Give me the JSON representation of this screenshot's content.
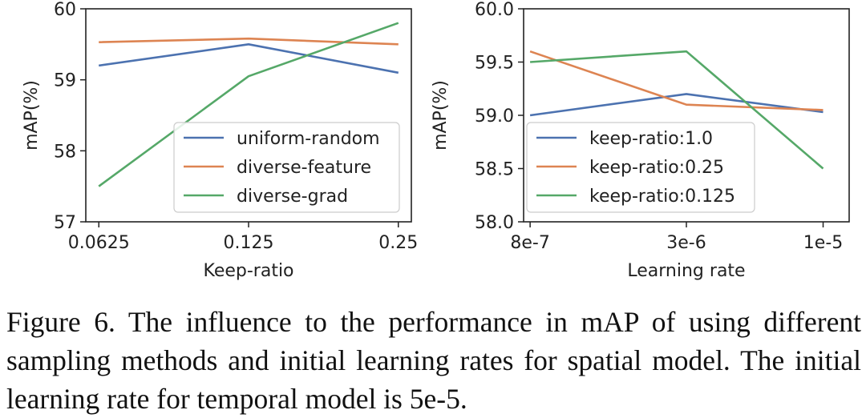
{
  "chart_data": [
    {
      "type": "line",
      "xlabel": "Keep-ratio",
      "ylabel": "mAP(%)",
      "x_categories": [
        "0.0625",
        "0.125",
        "0.25"
      ],
      "ylim": [
        57,
        60
      ],
      "yticks": [
        "57",
        "58",
        "59",
        "60"
      ],
      "legend_position": "lower-right",
      "series": [
        {
          "name": "uniform-random",
          "color": "#4c72b0",
          "values": [
            59.2,
            59.5,
            59.1
          ]
        },
        {
          "name": "diverse-feature",
          "color": "#dd8452",
          "values": [
            59.53,
            59.58,
            59.5
          ]
        },
        {
          "name": "diverse-grad",
          "color": "#55a868",
          "values": [
            57.5,
            59.05,
            59.8
          ]
        }
      ]
    },
    {
      "type": "line",
      "xlabel": "Learning rate",
      "ylabel": "mAP(%)",
      "x_categories": [
        "8e-7",
        "3e-6",
        "1e-5"
      ],
      "ylim": [
        58.0,
        60.0
      ],
      "yticks": [
        "58.0",
        "58.5",
        "59.0",
        "59.5",
        "60.0"
      ],
      "legend_position": "lower-left",
      "series": [
        {
          "name": "keep-ratio:1.0",
          "color": "#4c72b0",
          "values": [
            59.0,
            59.2,
            59.03
          ]
        },
        {
          "name": "keep-ratio:0.25",
          "color": "#dd8452",
          "values": [
            59.6,
            59.1,
            59.05
          ]
        },
        {
          "name": "keep-ratio:0.125",
          "color": "#55a868",
          "values": [
            59.5,
            59.6,
            58.5
          ]
        }
      ]
    }
  ],
  "caption": "Figure 6. The influence to the performance in mAP of using different sampling methods and initial learning rates for spatial model. The initial learning rate for temporal model is 5e-5."
}
